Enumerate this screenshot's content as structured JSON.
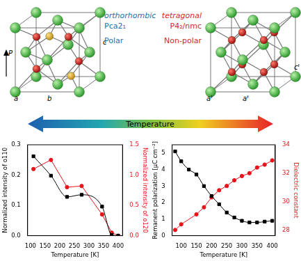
{
  "structures": [
    {
      "name": "orthorhombic",
      "space_group": "Pca2₁",
      "property": "Polar",
      "color": "#1f6fb0",
      "axes": [
        "a",
        "b",
        "c"
      ],
      "arrow": "P"
    },
    {
      "name": "tetragonal",
      "space_group": "P4₂/nmc",
      "property": "Non-polar",
      "color": "#d42a2a",
      "axes": [
        "aᵗ",
        "aᵗ",
        "cᵗ"
      ]
    }
  ],
  "arrow_label": "Temperature",
  "chart_data": [
    {
      "type": "line",
      "x_label": "Temperature [K]",
      "y_label": "Normalized intensity of o110",
      "y2_label": "Normalized intensity of o120",
      "xlim": [
        90,
        415
      ],
      "xticks": [
        100,
        150,
        200,
        250,
        300,
        350,
        400
      ],
      "ylim": [
        0,
        0.3
      ],
      "yticks": [
        {
          "value": 0,
          "label": "0.0"
        },
        {
          "value": 0.1,
          "label": "0.1"
        },
        {
          "value": 0.2,
          "label": "0.2"
        },
        {
          "value": 0.3,
          "label": "0.3"
        }
      ],
      "y2lim": [
        0,
        1.5
      ],
      "y2ticks": [
        {
          "value": 0,
          "label": "0.0"
        },
        {
          "value": 0.5,
          "label": "0.5"
        },
        {
          "value": 1,
          "label": "1.0"
        },
        {
          "value": 1.5,
          "label": "1.5"
        }
      ],
      "grid": false,
      "series": [
        {
          "color": "#000000",
          "marker": "square",
          "line_style": "smooth",
          "x": [
            110,
            170,
            225,
            275,
            345,
            378,
            400
          ],
          "values": [
            0.262,
            0.198,
            0.128,
            0.135,
            0.096,
            0.002,
            0.0
          ]
        },
        {
          "color": "#e8141b",
          "marker": "circle",
          "line_style": "solid",
          "axis": "y2",
          "x": [
            110,
            170,
            225,
            275,
            345,
            378,
            400
          ],
          "values": [
            1.1,
            1.25,
            0.8,
            0.82,
            0.35,
            0.05,
            0.0
          ]
        }
      ]
    },
    {
      "type": "line",
      "x_label": "Temperature [K]",
      "y_label": "Remanent polarization [μC cm⁻²]",
      "y2_label": "Dielectric constant",
      "xlim": [
        70,
        410
      ],
      "xticks": [
        100,
        150,
        200,
        250,
        300,
        350,
        400
      ],
      "ylim": [
        0,
        5.5
      ],
      "yticks": [
        0,
        1,
        2,
        3,
        4,
        5
      ],
      "y2lim": [
        27.6,
        34
      ],
      "y2ticks": [
        28,
        30,
        32,
        34
      ],
      "grid": false,
      "series": [
        {
          "color": "#000000",
          "marker": "square",
          "line_style": "smooth",
          "x": [
            80,
            100,
            125,
            150,
            175,
            200,
            225,
            250,
            275,
            300,
            325,
            350,
            375,
            400
          ],
          "values": [
            5.1,
            4.5,
            4.0,
            3.7,
            3.0,
            2.4,
            1.9,
            1.4,
            1.1,
            0.9,
            0.8,
            0.8,
            0.85,
            0.9
          ]
        },
        {
          "color": "#e8141b",
          "marker": "circle",
          "line_style": "solid",
          "axis": "y2",
          "x": [
            80,
            100,
            150,
            175,
            200,
            225,
            250,
            275,
            300,
            325,
            350,
            375,
            400
          ],
          "values": [
            28.0,
            28.4,
            29.1,
            29.6,
            30.3,
            30.8,
            31.1,
            31.5,
            31.8,
            32.0,
            32.4,
            32.6,
            32.9
          ]
        }
      ]
    }
  ]
}
